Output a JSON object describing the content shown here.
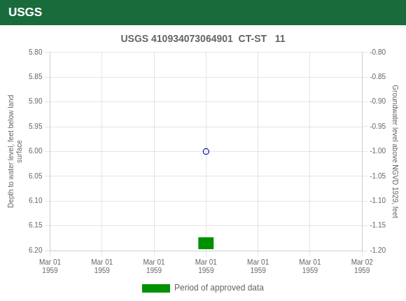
{
  "chart_data": {
    "type": "scatter",
    "title": "USGS 410934073064901  CT-ST   11",
    "annotations": [
      "USGS"
    ],
    "y_label": "Depth to water level, feet below land\nsurface",
    "y2_label": "Groundwater level above NGVD 1929, feet",
    "xlim": [
      0,
      24
    ],
    "xticks": [
      {
        "value": 0,
        "label": "Mar 01\n1959"
      },
      {
        "value": 4,
        "label": "Mar 01\n1959"
      },
      {
        "value": 8,
        "label": "Mar 01\n1959"
      },
      {
        "value": 12,
        "label": "Mar 01\n1959"
      },
      {
        "value": 16,
        "label": "Mar 01\n1959"
      },
      {
        "value": 20,
        "label": "Mar 01\n1959"
      },
      {
        "value": 24,
        "label": "Mar 02\n1959"
      }
    ],
    "ylim": [
      6.2,
      5.8
    ],
    "yticks": [
      {
        "value": 5.8,
        "label": "5.80"
      },
      {
        "value": 5.85,
        "label": "5.85"
      },
      {
        "value": 5.9,
        "label": "5.90"
      },
      {
        "value": 5.95,
        "label": "5.95"
      },
      {
        "value": 6.0,
        "label": "6.00"
      },
      {
        "value": 6.05,
        "label": "6.05"
      },
      {
        "value": 6.1,
        "label": "6.10"
      },
      {
        "value": 6.15,
        "label": "6.15"
      },
      {
        "value": 6.2,
        "label": "6.20"
      }
    ],
    "y2lim": [
      -1.2,
      -0.8
    ],
    "y2ticks": [
      {
        "value": -0.8,
        "label": "-0.80"
      },
      {
        "value": -0.85,
        "label": "-0.85"
      },
      {
        "value": -0.9,
        "label": "-0.90"
      },
      {
        "value": -0.95,
        "label": "-0.95"
      },
      {
        "value": -1.0,
        "label": "-1.00"
      },
      {
        "value": -1.05,
        "label": "-1.05"
      },
      {
        "value": -1.1,
        "label": "-1.10"
      },
      {
        "value": -1.15,
        "label": "-1.15"
      },
      {
        "value": -1.2,
        "label": "-1.20"
      }
    ],
    "grid": true,
    "legend": "bottom",
    "series": [
      {
        "type": "scatter",
        "color": "#0000bb",
        "marker": "open_circle",
        "x": [
          12
        ],
        "values": [
          6.0
        ]
      },
      {
        "name": "Period of approved data",
        "type": "band",
        "color": "#009000",
        "x": [
          11.4,
          12.6
        ],
        "low": [
          6.173,
          6.173
        ],
        "high": [
          6.197,
          6.197
        ]
      }
    ]
  }
}
